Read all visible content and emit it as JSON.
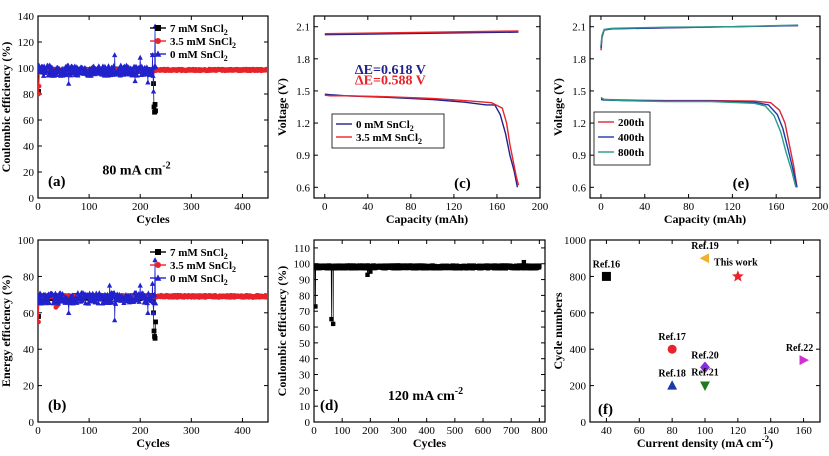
{
  "colors": {
    "black": "#000000",
    "red": "#e8232a",
    "blue": "#2222cc",
    "navy": "#22228c",
    "teal": "#2a9a8a",
    "crimson": "#d8283a",
    "orange": "#f0b030",
    "purple": "#8a2be2",
    "green": "#1f7a1f",
    "magenta": "#d030d0",
    "rblue": "#1a3aa8"
  },
  "chart_data": [
    {
      "id": "a",
      "type": "scatter",
      "panel_label": "(a)",
      "annotation": "80 mA cm",
      "annotation_sup": "-2",
      "xlabel": "Cycles",
      "ylabel": "Coulombic efficiency (%)",
      "xlim": [
        0,
        450
      ],
      "ylim": [
        0,
        140
      ],
      "xticks": [
        0,
        100,
        200,
        300,
        400
      ],
      "yticks": [
        0,
        20,
        40,
        60,
        80,
        100,
        120,
        140
      ],
      "legend": [
        {
          "name": "7 mM SnCl",
          "sub": "2"
        },
        {
          "name": "3.5 mM SnCl",
          "sub": "2"
        },
        {
          "name": "0 mM SnCl",
          "sub": "2"
        }
      ],
      "legend_position": "top-right",
      "series": [
        {
          "name": "7 mM SnCl2",
          "color": "black",
          "marker": "square",
          "x_range": [
            0,
            230
          ],
          "y_mean": 98,
          "noise": 1.2,
          "outliers": [
            [
              1,
              82
            ],
            [
              226,
              88
            ],
            [
              227,
              70
            ],
            [
              228,
              66
            ],
            [
              229,
              72
            ],
            [
              230,
              67
            ]
          ]
        },
        {
          "name": "3.5 mM SnCl2",
          "color": "red",
          "marker": "circle",
          "x_range": [
            0,
            450
          ],
          "y_mean": 98.5,
          "noise": 0.6,
          "outliers": [
            [
              1,
              80
            ],
            [
              2,
              86
            ]
          ]
        },
        {
          "name": "0 mM SnCl2",
          "color": "blue",
          "marker": "triangle",
          "x_range": [
            0,
            230
          ],
          "y_mean": 98,
          "noise": 4,
          "outliers": [
            [
              60,
              88
            ],
            [
              150,
              110
            ],
            [
              190,
              90
            ],
            [
              200,
              108
            ],
            [
              215,
              89
            ],
            [
              229,
              132
            ],
            [
              226,
              82
            ],
            [
              224,
              110
            ]
          ]
        }
      ]
    },
    {
      "id": "b",
      "type": "scatter",
      "panel_label": "(b)",
      "xlabel": "Cycles",
      "ylabel": "Energy efficiency (%)",
      "xlim": [
        0,
        450
      ],
      "ylim": [
        0,
        100
      ],
      "xticks": [
        0,
        100,
        200,
        300,
        400
      ],
      "yticks": [
        0,
        20,
        40,
        60,
        80,
        100
      ],
      "legend": [
        {
          "name": "7 mM SnCl",
          "sub": "2"
        },
        {
          "name": "3.5 mM SnCl",
          "sub": "2"
        },
        {
          "name": "0 mM SnCl",
          "sub": "2"
        }
      ],
      "legend_position": "top-right",
      "series": [
        {
          "name": "7 mM SnCl2",
          "color": "black",
          "marker": "square",
          "x_range": [
            0,
            230
          ],
          "y_mean": 68.5,
          "noise": 1.0,
          "outliers": [
            [
              1,
              58
            ],
            [
              226,
              60
            ],
            [
              227,
              50
            ],
            [
              228,
              47
            ],
            [
              229,
              46
            ],
            [
              230,
              55
            ]
          ]
        },
        {
          "name": "3.5 mM SnCl2",
          "color": "red",
          "marker": "circle",
          "x_range": [
            0,
            450
          ],
          "y_mean": 69,
          "noise": 0.6,
          "outliers": [
            [
              1,
              55
            ],
            [
              35,
              63
            ],
            [
              38,
              64
            ]
          ]
        },
        {
          "name": "0 mM SnCl2",
          "color": "blue",
          "marker": "triangle",
          "x_range": [
            0,
            230
          ],
          "y_mean": 68,
          "noise": 3,
          "outliers": [
            [
              60,
              60
            ],
            [
              140,
              75
            ],
            [
              150,
              56
            ],
            [
              200,
              75
            ],
            [
              215,
              60
            ],
            [
              229,
              89
            ],
            [
              226,
              60
            ],
            [
              224,
              76
            ]
          ]
        }
      ]
    },
    {
      "id": "c",
      "type": "line",
      "panel_label": "(c)",
      "xlabel": "Capacity (mAh)",
      "ylabel": "Voltage (V)",
      "xlim": [
        -10,
        200
      ],
      "ylim": [
        0.5,
        2.2
      ],
      "xticks": [
        0,
        40,
        80,
        120,
        160,
        200
      ],
      "yticks": [
        0.6,
        0.9,
        1.2,
        1.5,
        1.8,
        2.1
      ],
      "annotations": [
        {
          "text": "ΔE=0.618 V",
          "color": "navy",
          "at": [
            28,
            1.66
          ]
        },
        {
          "text": "ΔE=0.588 V",
          "color": "red",
          "at": [
            28,
            1.56
          ]
        }
      ],
      "legend": [
        {
          "name": "0 mM SnCl",
          "sub": "2"
        },
        {
          "name": "3.5 mM SnCl",
          "sub": "2"
        }
      ],
      "legend_position": "center-left",
      "series": [
        {
          "name": "0 mM SnCl2 charge",
          "color": "navy",
          "x": [
            0,
            180
          ],
          "y": [
            2.025,
            2.05
          ]
        },
        {
          "name": "3.5 mM SnCl2 charge",
          "color": "red",
          "x": [
            0,
            180
          ],
          "y": [
            2.035,
            2.06
          ]
        },
        {
          "name": "0 mM SnCl2 discharge",
          "color": "navy",
          "x": [
            0,
            5,
            20,
            60,
            100,
            130,
            150,
            158,
            163,
            168,
            172,
            176,
            179
          ],
          "y": [
            1.47,
            1.465,
            1.455,
            1.44,
            1.42,
            1.395,
            1.37,
            1.37,
            1.28,
            1.1,
            0.9,
            0.75,
            0.6
          ]
        },
        {
          "name": "3.5 mM SnCl2 discharge",
          "color": "red",
          "x": [
            0,
            5,
            20,
            60,
            100,
            130,
            155,
            165,
            169,
            172,
            175,
            178,
            180
          ],
          "y": [
            1.46,
            1.455,
            1.455,
            1.445,
            1.43,
            1.41,
            1.39,
            1.34,
            1.2,
            1.0,
            0.85,
            0.7,
            0.62
          ]
        }
      ]
    },
    {
      "id": "d",
      "type": "scatter",
      "panel_label": "(d)",
      "annotation": "120 mA cm",
      "annotation_sup": "-2",
      "xlabel": "Cycles",
      "ylabel": "Coulombic efficiency (%)",
      "xlim": [
        0,
        820
      ],
      "ylim": [
        0,
        115
      ],
      "xticks": [
        0,
        100,
        200,
        300,
        400,
        500,
        600,
        700,
        800
      ],
      "yticks": [
        0,
        10,
        20,
        30,
        40,
        50,
        60,
        70,
        80,
        90,
        100,
        110
      ],
      "series": [
        {
          "name": "120 mA cm-2",
          "color": "black",
          "marker": "square",
          "x_range": [
            0,
            800
          ],
          "y_mean": 98,
          "noise": 0.9,
          "outliers": [
            [
              5,
              73
            ],
            [
              62,
              65
            ],
            [
              68,
              62
            ],
            [
              190,
              93
            ],
            [
              200,
              95
            ],
            [
              745,
              101
            ],
            [
              2,
              98
            ]
          ]
        }
      ]
    },
    {
      "id": "e",
      "type": "line",
      "panel_label": "(e)",
      "xlabel": "Capacity (mAh)",
      "ylabel": "Voltage (V)",
      "xlim": [
        -10,
        200
      ],
      "ylim": [
        0.5,
        2.2
      ],
      "xticks": [
        0,
        40,
        80,
        120,
        160,
        200
      ],
      "yticks": [
        0.6,
        0.9,
        1.2,
        1.5,
        1.8,
        2.1
      ],
      "legend": [
        {
          "name": "200th",
          "sub": ""
        },
        {
          "name": "400th",
          "sub": ""
        },
        {
          "name": "800th",
          "sub": ""
        }
      ],
      "legend_position": "center-left",
      "series": [
        {
          "name": "200th charge",
          "color": "crimson",
          "x": [
            0,
            1,
            3,
            10,
            60,
            120,
            180
          ],
          "y": [
            1.88,
            2.0,
            2.07,
            2.08,
            2.09,
            2.1,
            2.11
          ]
        },
        {
          "name": "400th charge",
          "color": "rblue",
          "x": [
            0,
            1,
            3,
            10,
            60,
            120,
            180
          ],
          "y": [
            1.9,
            2.01,
            2.07,
            2.08,
            2.09,
            2.1,
            2.11
          ]
        },
        {
          "name": "800th charge",
          "color": "teal",
          "x": [
            0,
            1,
            3,
            10,
            60,
            120,
            180
          ],
          "y": [
            1.93,
            2.02,
            2.075,
            2.085,
            2.095,
            2.1,
            2.115
          ]
        },
        {
          "name": "200th discharge",
          "color": "crimson",
          "x": [
            0,
            3,
            20,
            60,
            100,
            140,
            155,
            163,
            168,
            172,
            176,
            179
          ],
          "y": [
            1.43,
            1.42,
            1.415,
            1.41,
            1.41,
            1.405,
            1.39,
            1.32,
            1.2,
            1.0,
            0.8,
            0.6
          ]
        },
        {
          "name": "400th discharge",
          "color": "rblue",
          "x": [
            0,
            3,
            20,
            60,
            100,
            140,
            153,
            161,
            166,
            171,
            175,
            179
          ],
          "y": [
            1.42,
            1.415,
            1.41,
            1.405,
            1.405,
            1.395,
            1.37,
            1.28,
            1.15,
            0.95,
            0.78,
            0.6
          ]
        },
        {
          "name": "800th discharge",
          "color": "teal",
          "x": [
            0,
            3,
            20,
            60,
            100,
            140,
            150,
            158,
            164,
            169,
            174,
            178
          ],
          "y": [
            1.44,
            1.42,
            1.41,
            1.4,
            1.4,
            1.385,
            1.36,
            1.27,
            1.12,
            0.93,
            0.76,
            0.6
          ]
        }
      ]
    },
    {
      "id": "f",
      "type": "scatter",
      "panel_label": "(f)",
      "xlabel": "Current density (mA cm",
      "xlabel_sup": "-2",
      "xlabel_tail": ")",
      "ylabel": "Cycle numbers",
      "xlim": [
        30,
        170
      ],
      "ylim": [
        0,
        1000
      ],
      "xticks": [
        40,
        60,
        80,
        100,
        120,
        140,
        160
      ],
      "yticks": [
        0,
        200,
        400,
        600,
        800,
        1000
      ],
      "points": [
        {
          "label": "Ref.16",
          "x": 40,
          "y": 800,
          "marker": "square",
          "color": "black"
        },
        {
          "label": "Ref.19",
          "x": 100,
          "y": 900,
          "marker": "triangle-left",
          "color": "orange"
        },
        {
          "label": "This work",
          "x": 120,
          "y": 800,
          "marker": "star",
          "color": "red"
        },
        {
          "label": "Ref.17",
          "x": 80,
          "y": 400,
          "marker": "circle",
          "color": "red"
        },
        {
          "label": "Ref.20",
          "x": 100,
          "y": 300,
          "marker": "diamond",
          "color": "purple"
        },
        {
          "label": "Ref.18",
          "x": 80,
          "y": 200,
          "marker": "triangle",
          "color": "rblue"
        },
        {
          "label": "Ref.21",
          "x": 100,
          "y": 200,
          "marker": "triangle-down",
          "color": "green"
        },
        {
          "label": "Ref.22",
          "x": 160,
          "y": 340,
          "marker": "triangle-right",
          "color": "magenta"
        }
      ]
    }
  ]
}
